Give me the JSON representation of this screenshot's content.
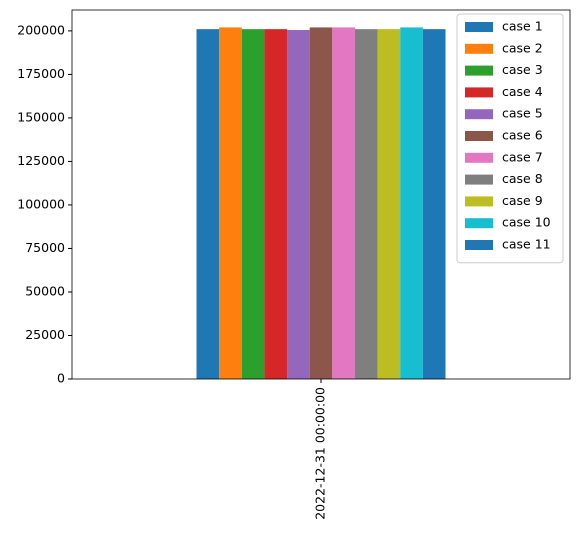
{
  "chart_data": {
    "type": "bar",
    "categories": [
      "2022-12-31 00:00:00"
    ],
    "series": [
      {
        "name": "case 1",
        "color": "#1f77b4",
        "values": [
          201000
        ]
      },
      {
        "name": "case 2",
        "color": "#ff7f0e",
        "values": [
          202000
        ]
      },
      {
        "name": "case 3",
        "color": "#2ca02c",
        "values": [
          201000
        ]
      },
      {
        "name": "case 4",
        "color": "#d62728",
        "values": [
          201000
        ]
      },
      {
        "name": "case 5",
        "color": "#9467bd",
        "values": [
          200500
        ]
      },
      {
        "name": "case 6",
        "color": "#8c564b",
        "values": [
          202000
        ]
      },
      {
        "name": "case 7",
        "color": "#e377c2",
        "values": [
          202000
        ]
      },
      {
        "name": "case 8",
        "color": "#7f7f7f",
        "values": [
          201000
        ]
      },
      {
        "name": "case 9",
        "color": "#bcbd22",
        "values": [
          201000
        ]
      },
      {
        "name": "case 10",
        "color": "#17becf",
        "values": [
          202000
        ]
      },
      {
        "name": "case 11",
        "color": "#1f77b4",
        "values": [
          201000
        ]
      }
    ],
    "ylim": [
      0,
      212000
    ],
    "yticks": [
      0,
      25000,
      50000,
      75000,
      100000,
      125000,
      150000,
      175000,
      200000
    ],
    "legend": "upper right"
  }
}
